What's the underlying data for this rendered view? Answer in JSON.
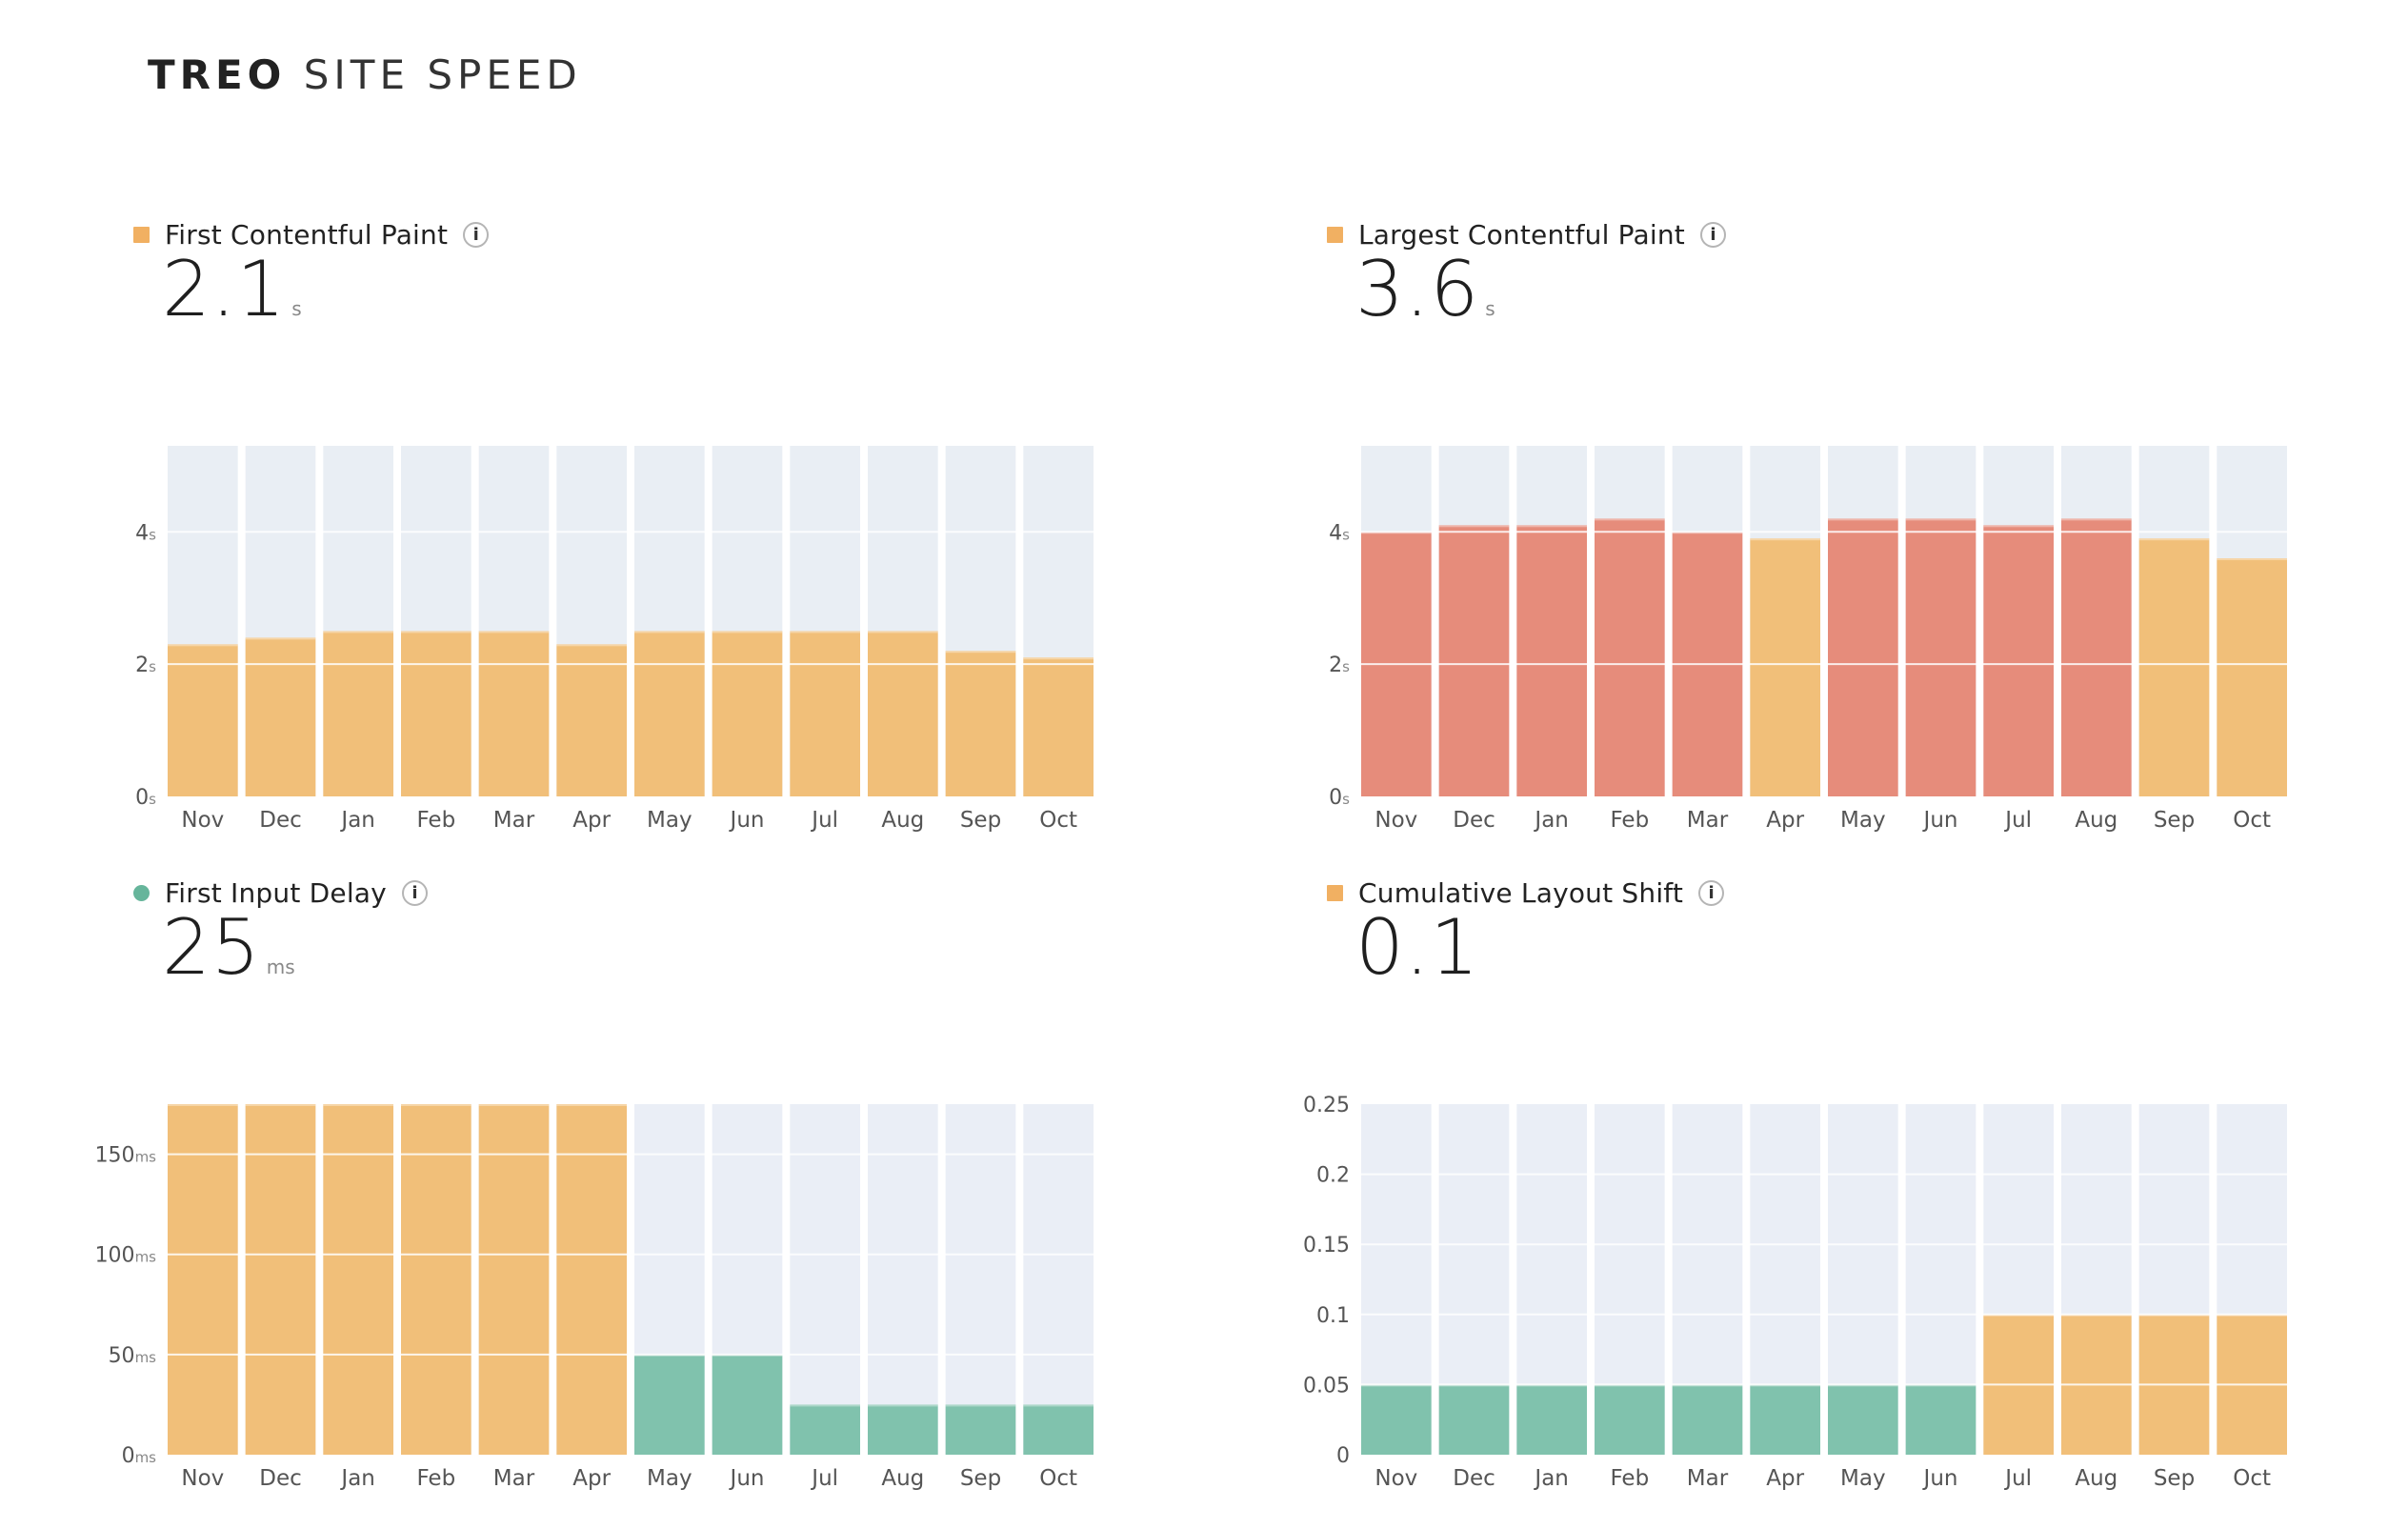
{
  "header": {
    "brand_bold": "TREO",
    "brand_light": "SITE SPEED"
  },
  "colors": {
    "good": "#80c2ad",
    "needs_improvement": "#f1bf79",
    "poor": "#e68c7b",
    "track": "#e9eef4",
    "track_alt": "#eaeef6"
  },
  "chart_data": [
    {
      "id": "fcp",
      "type": "bar",
      "title": "First Contentful Paint",
      "marker_shape": "square",
      "marker_color": "#f1b062",
      "value": "2.1",
      "unit": "s",
      "categories": [
        "Nov",
        "Dec",
        "Jan",
        "Feb",
        "Mar",
        "Apr",
        "May",
        "Jun",
        "Jul",
        "Aug",
        "Sep",
        "Oct"
      ],
      "values": [
        2.3,
        2.4,
        2.5,
        2.5,
        2.5,
        2.3,
        2.5,
        2.5,
        2.5,
        2.5,
        2.2,
        2.1
      ],
      "bar_status": [
        "needs_improvement",
        "needs_improvement",
        "needs_improvement",
        "needs_improvement",
        "needs_improvement",
        "needs_improvement",
        "needs_improvement",
        "needs_improvement",
        "needs_improvement",
        "needs_improvement",
        "needs_improvement",
        "needs_improvement"
      ],
      "ylim": [
        0,
        5.3
      ],
      "yticks": [
        {
          "value": 0,
          "label": "0",
          "unit": "s"
        },
        {
          "value": 2,
          "label": "2",
          "unit": "s"
        },
        {
          "value": 4,
          "label": "4",
          "unit": "s"
        }
      ],
      "grid": true
    },
    {
      "id": "lcp",
      "type": "bar",
      "title": "Largest Contentful Paint",
      "marker_shape": "square",
      "marker_color": "#f1b062",
      "value": "3.6",
      "unit": "s",
      "categories": [
        "Nov",
        "Dec",
        "Jan",
        "Feb",
        "Mar",
        "Apr",
        "May",
        "Jun",
        "Jul",
        "Aug",
        "Sep",
        "Oct"
      ],
      "values": [
        4.0,
        4.1,
        4.1,
        4.2,
        4.0,
        3.9,
        4.2,
        4.2,
        4.1,
        4.2,
        3.9,
        3.6
      ],
      "bar_status": [
        "poor",
        "poor",
        "poor",
        "poor",
        "poor",
        "needs_improvement",
        "poor",
        "poor",
        "poor",
        "poor",
        "needs_improvement",
        "needs_improvement"
      ],
      "ylim": [
        0,
        5.3
      ],
      "yticks": [
        {
          "value": 0,
          "label": "0",
          "unit": "s"
        },
        {
          "value": 2,
          "label": "2",
          "unit": "s"
        },
        {
          "value": 4,
          "label": "4",
          "unit": "s"
        }
      ],
      "grid": true
    },
    {
      "id": "fid",
      "type": "bar",
      "title": "First Input Delay",
      "marker_shape": "circle",
      "marker_color": "#66b59b",
      "value": "25",
      "unit": "ms",
      "categories": [
        "Nov",
        "Dec",
        "Jan",
        "Feb",
        "Mar",
        "Apr",
        "May",
        "Jun",
        "Jul",
        "Aug",
        "Sep",
        "Oct"
      ],
      "values": [
        175,
        175,
        175,
        175,
        175,
        175,
        50,
        50,
        25,
        25,
        25,
        25
      ],
      "bar_status": [
        "needs_improvement",
        "needs_improvement",
        "needs_improvement",
        "needs_improvement",
        "needs_improvement",
        "needs_improvement",
        "good",
        "good",
        "good",
        "good",
        "good",
        "good"
      ],
      "ylim": [
        0,
        175
      ],
      "yticks": [
        {
          "value": 0,
          "label": "0",
          "unit": "ms"
        },
        {
          "value": 50,
          "label": "50",
          "unit": "ms"
        },
        {
          "value": 100,
          "label": "100",
          "unit": "ms"
        },
        {
          "value": 150,
          "label": "150",
          "unit": "ms"
        }
      ],
      "grid": true
    },
    {
      "id": "cls",
      "type": "bar",
      "title": "Cumulative Layout Shift",
      "marker_shape": "square",
      "marker_color": "#f1b062",
      "value": "0.1",
      "unit": "",
      "categories": [
        "Nov",
        "Dec",
        "Jan",
        "Feb",
        "Mar",
        "Apr",
        "May",
        "Jun",
        "Jul",
        "Aug",
        "Sep",
        "Oct"
      ],
      "values": [
        0.05,
        0.05,
        0.05,
        0.05,
        0.05,
        0.05,
        0.05,
        0.05,
        0.1,
        0.1,
        0.1,
        0.1
      ],
      "bar_status": [
        "good",
        "good",
        "good",
        "good",
        "good",
        "good",
        "good",
        "good",
        "needs_improvement",
        "needs_improvement",
        "needs_improvement",
        "needs_improvement"
      ],
      "ylim": [
        0,
        0.25
      ],
      "yticks": [
        {
          "value": 0,
          "label": "0",
          "unit": ""
        },
        {
          "value": 0.05,
          "label": "0.05",
          "unit": ""
        },
        {
          "value": 0.1,
          "label": "0.1",
          "unit": ""
        },
        {
          "value": 0.15,
          "label": "0.15",
          "unit": ""
        },
        {
          "value": 0.2,
          "label": "0.2",
          "unit": ""
        },
        {
          "value": 0.25,
          "label": "0.25",
          "unit": ""
        }
      ],
      "grid": true
    }
  ]
}
